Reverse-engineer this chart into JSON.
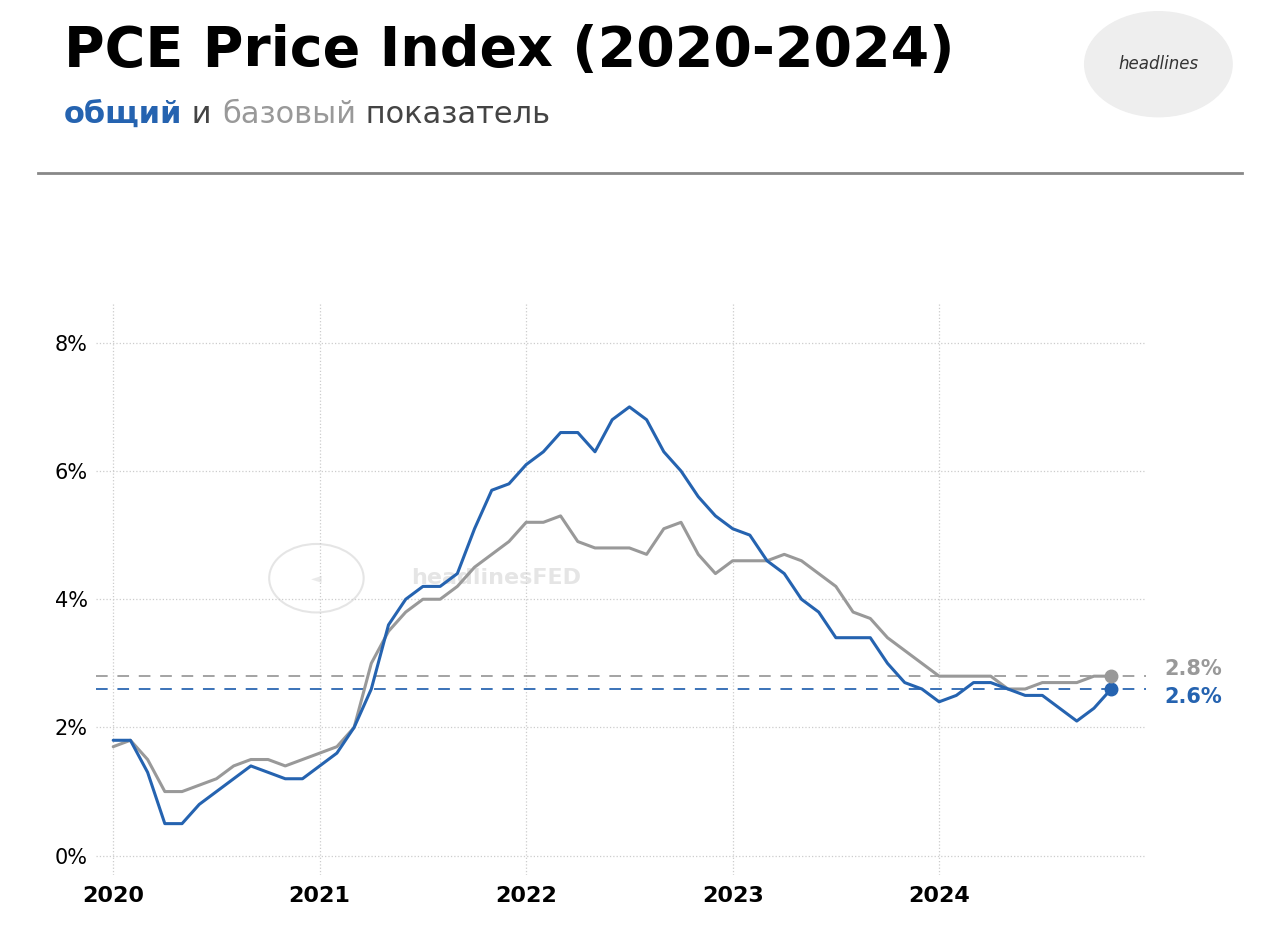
{
  "title": "PCE Price Index (2020-2024)",
  "subtitle_parts": [
    {
      "text": "общий",
      "color": "#2563b0",
      "bold": true
    },
    {
      "text": " и ",
      "color": "#444444",
      "bold": false
    },
    {
      "text": "базовый",
      "color": "#999999",
      "bold": false
    },
    {
      "text": " показатель",
      "color": "#444444",
      "bold": false
    }
  ],
  "blue_hline": 2.6,
  "gray_hline": 2.8,
  "blue_end_label": "2.6%",
  "gray_end_label": "2.8%",
  "ylim": [
    -0.3,
    8.6
  ],
  "yticks": [
    0,
    2,
    4,
    6,
    8
  ],
  "blue_color": "#2563b0",
  "gray_color": "#999999",
  "year_ticks": [
    0,
    12,
    24,
    36,
    48
  ],
  "year_labels": [
    "2020",
    "2021",
    "2022",
    "2023",
    "2024"
  ],
  "blue_data": [
    1.8,
    1.8,
    1.3,
    0.5,
    0.5,
    0.8,
    1.0,
    1.2,
    1.4,
    1.3,
    1.2,
    1.2,
    1.4,
    1.6,
    2.0,
    2.6,
    3.6,
    4.0,
    4.2,
    4.2,
    4.4,
    5.1,
    5.7,
    5.8,
    6.1,
    6.3,
    6.6,
    6.6,
    6.3,
    6.8,
    7.0,
    6.8,
    6.3,
    6.0,
    5.6,
    5.3,
    5.1,
    5.0,
    4.6,
    4.4,
    4.0,
    3.8,
    3.4,
    3.4,
    3.4,
    3.0,
    2.7,
    2.6,
    2.4,
    2.5,
    2.7,
    2.7,
    2.6,
    2.5,
    2.5,
    2.3,
    2.1,
    2.3,
    2.6
  ],
  "gray_data": [
    1.7,
    1.8,
    1.5,
    1.0,
    1.0,
    1.1,
    1.2,
    1.4,
    1.5,
    1.5,
    1.4,
    1.5,
    1.6,
    1.7,
    2.0,
    3.0,
    3.5,
    3.8,
    4.0,
    4.0,
    4.2,
    4.5,
    4.7,
    4.9,
    5.2,
    5.2,
    5.3,
    4.9,
    4.8,
    4.8,
    4.8,
    4.7,
    5.1,
    5.2,
    4.7,
    4.4,
    4.6,
    4.6,
    4.6,
    4.7,
    4.6,
    4.4,
    4.2,
    3.8,
    3.7,
    3.4,
    3.2,
    3.0,
    2.8,
    2.8,
    2.8,
    2.8,
    2.6,
    2.6,
    2.7,
    2.7,
    2.7,
    2.8,
    2.8
  ]
}
